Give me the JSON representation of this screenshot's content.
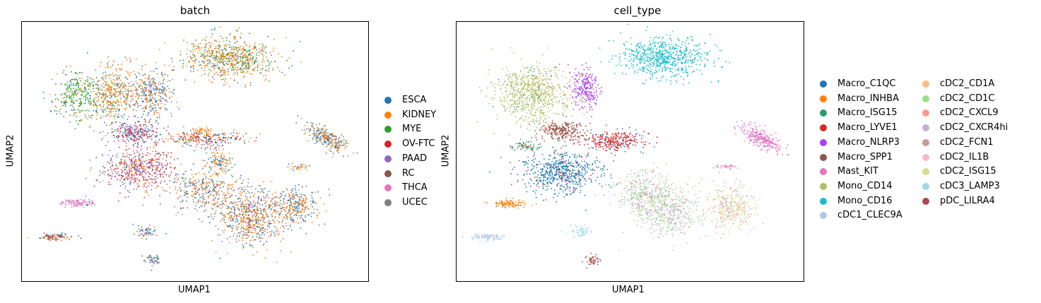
{
  "chart_data": [
    {
      "type": "scatter",
      "title": "batch",
      "xlabel": "UMAP1",
      "ylabel": "UMAP2",
      "xlim": [
        0,
        100
      ],
      "ylim": [
        0,
        100
      ],
      "grid": false,
      "legend_placement": "right",
      "legend_columns": 1,
      "series": [
        {
          "name": "ESCA",
          "color": "#1f77b4"
        },
        {
          "name": "KIDNEY",
          "color": "#ff7f0e"
        },
        {
          "name": "MYE",
          "color": "#2ca02c"
        },
        {
          "name": "OV-FTC",
          "color": "#d62728"
        },
        {
          "name": "PAAD",
          "color": "#9467bd"
        },
        {
          "name": "RC",
          "color": "#8c564b"
        },
        {
          "name": "THCA",
          "color": "#e377c2"
        },
        {
          "name": "UCEC",
          "color": "#7f7f7f"
        }
      ],
      "clusters": [
        {
          "cx": 60,
          "cy": 86,
          "rx": 13,
          "ry": 8,
          "n": 700,
          "mix": {
            "KIDNEY": 0.6,
            "MYE": 0.2,
            "ESCA": 0.2
          }
        },
        {
          "cx": 16,
          "cy": 72,
          "rx": 7,
          "ry": 10,
          "n": 300,
          "mix": {
            "MYE": 0.6,
            "KIDNEY": 0.2,
            "ESCA": 0.2
          }
        },
        {
          "cx": 26,
          "cy": 72,
          "rx": 6,
          "ry": 11,
          "n": 380,
          "mix": {
            "KIDNEY": 0.65,
            "ESCA": 0.25,
            "MYE": 0.1
          }
        },
        {
          "cx": 37,
          "cy": 72,
          "rx": 7,
          "ry": 10,
          "n": 380,
          "mix": {
            "ESCA": 0.45,
            "KIDNEY": 0.35,
            "PAAD": 0.1,
            "UCEC": 0.1
          }
        },
        {
          "cx": 32,
          "cy": 57,
          "rx": 7,
          "ry": 4,
          "n": 260,
          "mix": {
            "OV-FTC": 0.45,
            "ESCA": 0.3,
            "PAAD": 0.25
          }
        },
        {
          "cx": 34,
          "cy": 43,
          "rx": 10,
          "ry": 8,
          "n": 520,
          "mix": {
            "OV-FTC": 0.4,
            "PAAD": 0.3,
            "KIDNEY": 0.2,
            "ESCA": 0.1
          }
        },
        {
          "cx": 52,
          "cy": 55,
          "rx": 12,
          "ry": 3,
          "n": 260,
          "mix": {
            "ESCA": 0.4,
            "KIDNEY": 0.3,
            "OV-FTC": 0.3
          }
        },
        {
          "cx": 57,
          "cy": 46,
          "rx": 4,
          "ry": 5,
          "n": 120,
          "mix": {
            "ESCA": 0.5,
            "KIDNEY": 0.5
          }
        },
        {
          "cx": 53,
          "cy": 35,
          "rx": 10,
          "ry": 7,
          "n": 350,
          "mix": {
            "KIDNEY": 0.45,
            "ESCA": 0.3,
            "UCEC": 0.15,
            "PAAD": 0.1
          }
        },
        {
          "cx": 66,
          "cy": 25,
          "rx": 10,
          "ry": 11,
          "n": 650,
          "mix": {
            "KIDNEY": 0.5,
            "ESCA": 0.3,
            "RC": 0.1,
            "PAAD": 0.1
          }
        },
        {
          "cx": 79,
          "cy": 29,
          "rx": 7,
          "ry": 7,
          "n": 300,
          "mix": {
            "KIDNEY": 0.5,
            "ESCA": 0.35,
            "UCEC": 0.15
          }
        },
        {
          "cx": 88,
          "cy": 55,
          "rx": 7,
          "ry": 3,
          "n": 280,
          "rot": -40,
          "mix": {
            "ESCA": 0.4,
            "KIDNEY": 0.4,
            "UCEC": 0.2
          }
        },
        {
          "cx": 80,
          "cy": 44,
          "rx": 3,
          "ry": 1.2,
          "n": 30,
          "mix": {
            "KIDNEY": 0.7,
            "ESCA": 0.3
          }
        },
        {
          "cx": 52,
          "cy": 58,
          "rx": 3,
          "ry": 1.5,
          "n": 40,
          "mix": {
            "KIDNEY": 1.0
          }
        },
        {
          "cx": 16,
          "cy": 30,
          "rx": 5,
          "ry": 1.6,
          "n": 110,
          "mix": {
            "THCA": 0.9,
            "ESCA": 0.1
          }
        },
        {
          "cx": 10,
          "cy": 17,
          "rx": 5,
          "ry": 1.2,
          "n": 90,
          "mix": {
            "ESCA": 0.4,
            "KIDNEY": 0.3,
            "OV-FTC": 0.3
          }
        },
        {
          "cx": 36,
          "cy": 19,
          "rx": 3,
          "ry": 2.5,
          "n": 60,
          "mix": {
            "ESCA": 0.5,
            "KIDNEY": 0.3,
            "PAAD": 0.2
          }
        },
        {
          "cx": 38,
          "cy": 8,
          "rx": 2.5,
          "ry": 2.5,
          "n": 50,
          "mix": {
            "MYE": 0.3,
            "ESCA": 0.3,
            "PAAD": 0.4
          }
        }
      ]
    },
    {
      "type": "scatter",
      "title": "cell_type",
      "xlabel": "UMAP1",
      "ylabel": "UMAP2",
      "xlim": [
        0,
        100
      ],
      "ylim": [
        0,
        100
      ],
      "grid": false,
      "legend_placement": "right",
      "legend_columns": 2,
      "series": [
        {
          "name": "Macro_C1QC",
          "color": "#1f77b4"
        },
        {
          "name": "Macro_INHBA",
          "color": "#ff7f0e"
        },
        {
          "name": "Macro_ISG15",
          "color": "#279e68"
        },
        {
          "name": "Macro_LYVE1",
          "color": "#d62728"
        },
        {
          "name": "Macro_NLRP3",
          "color": "#aa40fc"
        },
        {
          "name": "Macro_SPP1",
          "color": "#8c564b"
        },
        {
          "name": "Mast_KIT",
          "color": "#e377c2"
        },
        {
          "name": "Mono_CD14",
          "color": "#b5bd61"
        },
        {
          "name": "Mono_CD16",
          "color": "#17becf"
        },
        {
          "name": "cDC1_CLEC9A",
          "color": "#aec7e8"
        },
        {
          "name": "cDC2_CD1A",
          "color": "#ffbb78"
        },
        {
          "name": "cDC2_CD1C",
          "color": "#98df8a"
        },
        {
          "name": "cDC2_CXCL9",
          "color": "#ff9896"
        },
        {
          "name": "cDC2_CXCR4hi",
          "color": "#c5b0d5"
        },
        {
          "name": "cDC2_FCN1",
          "color": "#c49c94"
        },
        {
          "name": "cDC2_IL1B",
          "color": "#f7b6d2"
        },
        {
          "name": "cDC2_ISG15",
          "color": "#dbdb8d"
        },
        {
          "name": "cDC3_LAMP3",
          "color": "#9edae5"
        },
        {
          "name": "pDC_LILRA4",
          "color": "#ad494a"
        }
      ],
      "clusters": [
        {
          "cx": 60,
          "cy": 86,
          "rx": 13,
          "ry": 8,
          "n": 700,
          "mix": {
            "Mono_CD16": 1.0
          }
        },
        {
          "cx": 22,
          "cy": 72,
          "rx": 11,
          "ry": 11,
          "n": 700,
          "mix": {
            "Mono_CD14": 0.9,
            "Macro_ISG15": 0.1
          }
        },
        {
          "cx": 37,
          "cy": 74,
          "rx": 4,
          "ry": 8,
          "n": 260,
          "mix": {
            "Macro_NLRP3": 0.9,
            "Mono_CD14": 0.1
          }
        },
        {
          "cx": 30,
          "cy": 58,
          "rx": 6,
          "ry": 3.5,
          "n": 240,
          "mix": {
            "Macro_SPP1": 0.8,
            "Macro_LYVE1": 0.2
          }
        },
        {
          "cx": 30,
          "cy": 42,
          "rx": 11,
          "ry": 8,
          "n": 600,
          "mix": {
            "Macro_C1QC": 0.9,
            "Macro_LYVE1": 0.1
          }
        },
        {
          "cx": 45,
          "cy": 54,
          "rx": 10,
          "ry": 4,
          "n": 300,
          "mix": {
            "Macro_LYVE1": 0.85,
            "Macro_C1QC": 0.15
          }
        },
        {
          "cx": 20,
          "cy": 52,
          "rx": 4,
          "ry": 2,
          "n": 60,
          "mix": {
            "Macro_ISG15": 0.7,
            "Macro_SPP1": 0.3
          }
        },
        {
          "cx": 54,
          "cy": 33,
          "rx": 8,
          "ry": 9,
          "n": 380,
          "mix": {
            "cDC2_CD1C": 0.45,
            "cDC2_CXCR4hi": 0.3,
            "cDC2_FCN1": 0.15,
            "cDC2_ISG15": 0.1
          }
        },
        {
          "cx": 62,
          "cy": 27,
          "rx": 9,
          "ry": 10,
          "n": 450,
          "mix": {
            "cDC2_CD1C": 0.5,
            "cDC2_CXCR4hi": 0.35,
            "cDC2_IL1B": 0.15
          }
        },
        {
          "cx": 79,
          "cy": 28,
          "rx": 7,
          "ry": 9,
          "n": 380,
          "mix": {
            "cDC2_ISG15": 0.6,
            "cDC2_CXCR4hi": 0.3,
            "cDC2_CXCL9": 0.1
          }
        },
        {
          "cx": 88,
          "cy": 55,
          "rx": 7,
          "ry": 3,
          "n": 280,
          "rot": -40,
          "mix": {
            "Mast_KIT": 1.0
          }
        },
        {
          "cx": 78,
          "cy": 44,
          "rx": 3,
          "ry": 1.2,
          "n": 30,
          "mix": {
            "Mast_KIT": 1.0
          }
        },
        {
          "cx": 15,
          "cy": 30,
          "rx": 5,
          "ry": 1.6,
          "n": 110,
          "mix": {
            "Macro_INHBA": 1.0
          }
        },
        {
          "cx": 9,
          "cy": 17,
          "rx": 5,
          "ry": 1.2,
          "n": 90,
          "mix": {
            "cDC1_CLEC9A": 1.0
          }
        },
        {
          "cx": 36,
          "cy": 19,
          "rx": 3,
          "ry": 2.5,
          "n": 60,
          "mix": {
            "cDC3_LAMP3": 1.0
          }
        },
        {
          "cx": 39,
          "cy": 8,
          "rx": 2.5,
          "ry": 2.5,
          "n": 50,
          "mix": {
            "pDC_LILRA4": 1.0
          }
        }
      ]
    }
  ]
}
